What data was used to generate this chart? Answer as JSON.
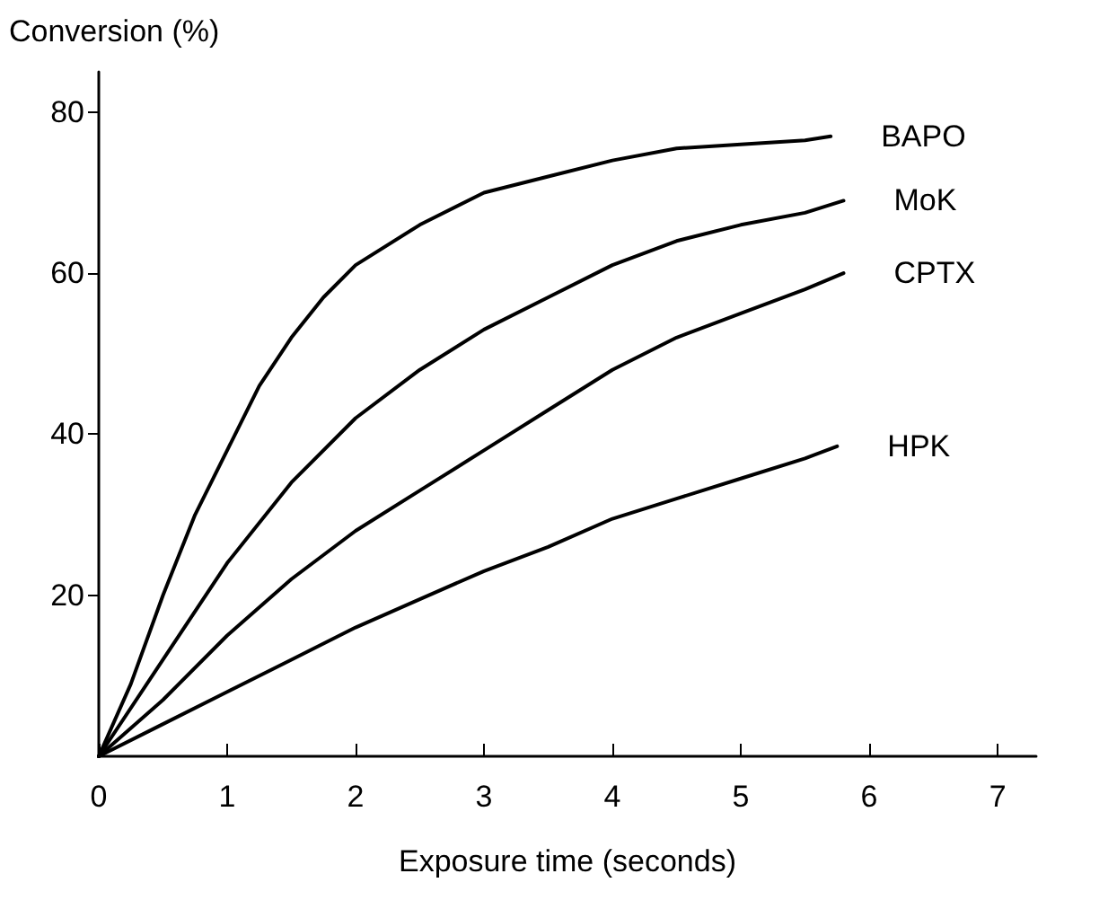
{
  "chart_data": {
    "type": "line",
    "xlabel": "Exposure time (seconds)",
    "ylabel": "Conversion (%)",
    "xlim": [
      0,
      7.3
    ],
    "xticks": [
      0,
      1,
      2,
      3,
      4,
      5,
      6,
      7
    ],
    "ylim": [
      0,
      85
    ],
    "yticks": [
      20,
      40,
      60,
      80
    ],
    "grid": false,
    "legend": false,
    "marker": "none",
    "line_style": "solid",
    "series": [
      {
        "name": "BAPO",
        "color": "#000000",
        "x": [
          0,
          0.25,
          0.5,
          0.75,
          1,
          1.25,
          1.5,
          1.75,
          2,
          2.5,
          3,
          3.5,
          4,
          4.5,
          5,
          5.5,
          5.7
        ],
        "values": [
          0,
          9,
          20,
          30,
          38,
          46,
          52,
          57,
          61,
          66,
          70,
          72,
          74,
          75.5,
          76,
          76.5,
          77
        ]
      },
      {
        "name": "MoK",
        "color": "#000000",
        "x": [
          0,
          0.5,
          1,
          1.5,
          2,
          2.5,
          3,
          3.5,
          4,
          4.5,
          5,
          5.5,
          5.8
        ],
        "values": [
          0,
          12,
          24,
          34,
          42,
          48,
          53,
          57,
          61,
          64,
          66,
          67.5,
          69
        ]
      },
      {
        "name": "CPTX",
        "color": "#000000",
        "x": [
          0,
          0.5,
          1,
          1.5,
          2,
          2.5,
          3,
          3.5,
          4,
          4.5,
          5,
          5.5,
          5.8
        ],
        "values": [
          0,
          7,
          15,
          22,
          28,
          33,
          38,
          43,
          48,
          52,
          55,
          58,
          60
        ]
      },
      {
        "name": "HPK",
        "color": "#000000",
        "x": [
          0,
          0.5,
          1,
          1.5,
          2,
          2.5,
          3,
          3.5,
          4,
          4.5,
          5,
          5.5,
          5.75
        ],
        "values": [
          0,
          4,
          8,
          12,
          16,
          19.5,
          23,
          26,
          29.5,
          32,
          34.5,
          37,
          38.5
        ]
      }
    ]
  }
}
